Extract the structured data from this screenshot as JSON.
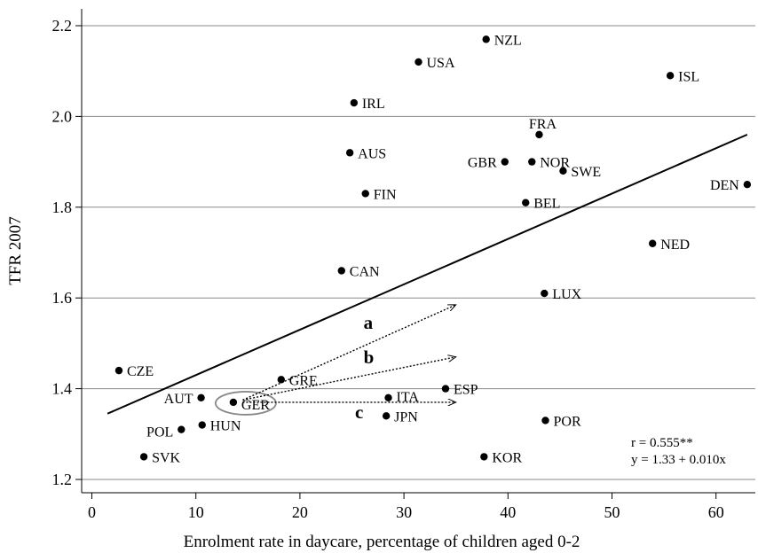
{
  "chart_data": {
    "type": "scatter",
    "title": "",
    "xlabel": "Enrolment rate in daycare, percentage of children aged 0-2",
    "ylabel": "TFR 2007",
    "xlim": [
      -1,
      63
    ],
    "ylim": [
      1.18,
      2.23
    ],
    "xticks": [
      0,
      10,
      20,
      30,
      40,
      50,
      60
    ],
    "yticks": [
      1.2,
      1.4,
      1.6,
      1.8,
      2.0,
      2.2
    ],
    "xtick_labels": [
      "0",
      "10",
      "20",
      "30",
      "40",
      "50",
      "60"
    ],
    "ytick_labels": [
      "1.2",
      "1.4",
      "1.6",
      "1.8",
      "2.0",
      "2.2"
    ],
    "grid": "horizontal",
    "points": [
      {
        "label": "NZL",
        "x": 37.9,
        "y": 2.17
      },
      {
        "label": "USA",
        "x": 31.4,
        "y": 2.12
      },
      {
        "label": "ISL",
        "x": 55.6,
        "y": 2.09
      },
      {
        "label": "IRL",
        "x": 25.2,
        "y": 2.03
      },
      {
        "label": "FRA",
        "x": 43.0,
        "y": 1.96
      },
      {
        "label": "AUS",
        "x": 24.8,
        "y": 1.92
      },
      {
        "label": "GBR",
        "x": 39.7,
        "y": 1.9
      },
      {
        "label": "NOR",
        "x": 42.3,
        "y": 1.9
      },
      {
        "label": "SWE",
        "x": 45.3,
        "y": 1.88
      },
      {
        "label": "DEN",
        "x": 63.0,
        "y": 1.85
      },
      {
        "label": "FIN",
        "x": 26.3,
        "y": 1.83
      },
      {
        "label": "BEL",
        "x": 41.7,
        "y": 1.81
      },
      {
        "label": "NED",
        "x": 53.9,
        "y": 1.72
      },
      {
        "label": "CAN",
        "x": 24.0,
        "y": 1.66
      },
      {
        "label": "LUX",
        "x": 43.5,
        "y": 1.61
      },
      {
        "label": "CZE",
        "x": 2.6,
        "y": 1.44
      },
      {
        "label": "GRE",
        "x": 18.2,
        "y": 1.42
      },
      {
        "label": "ESP",
        "x": 34.0,
        "y": 1.4
      },
      {
        "label": "AUT",
        "x": 10.5,
        "y": 1.38
      },
      {
        "label": "ITA",
        "x": 28.5,
        "y": 1.38
      },
      {
        "label": "GER",
        "x": 13.6,
        "y": 1.37
      },
      {
        "label": "JPN",
        "x": 28.3,
        "y": 1.34
      },
      {
        "label": "POR",
        "x": 43.6,
        "y": 1.33
      },
      {
        "label": "HUN",
        "x": 10.6,
        "y": 1.32
      },
      {
        "label": "POL",
        "x": 8.6,
        "y": 1.31
      },
      {
        "label": "SVK",
        "x": 5.0,
        "y": 1.25
      },
      {
        "label": "KOR",
        "x": 37.7,
        "y": 1.25
      }
    ],
    "regression": {
      "intercept": 1.33,
      "slope": 0.01,
      "x_range": [
        1.5,
        63
      ]
    },
    "annotations": {
      "stats": [
        "r = 0.555**",
        "y = 1.33 + 0.010x"
      ],
      "arrows": [
        {
          "letter": "a",
          "from": [
            14.5,
            1.375
          ],
          "to": [
            35,
            1.585
          ]
        },
        {
          "letter": "b",
          "from": [
            14.5,
            1.375
          ],
          "to": [
            35,
            1.47
          ]
        },
        {
          "letter": "c",
          "from": [
            14.5,
            1.37
          ],
          "to": [
            35,
            1.37
          ]
        }
      ],
      "highlight": "GER"
    }
  }
}
